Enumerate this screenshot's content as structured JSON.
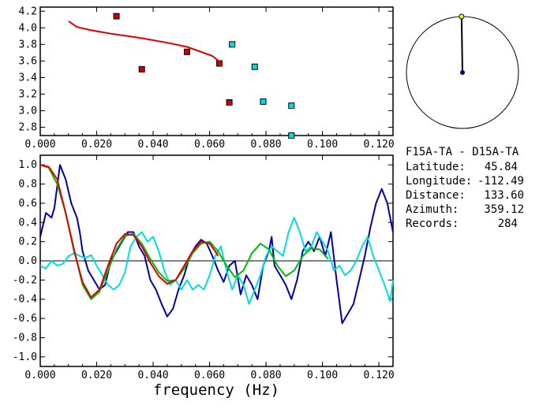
{
  "station": {
    "title": "F15A-TA - D15A-TA",
    "latitude_label": "Latitude:",
    "latitude": "45.84",
    "longitude_label": "Longitude:",
    "longitude": "-112.49",
    "distance_label": "Distance:",
    "distance": "133.60",
    "azimuth_label": "Azimuth:",
    "azimuth": "359.12",
    "records_label": "Records:",
    "records": "284"
  },
  "compass": {
    "azimuth_deg": 359.12,
    "marker_color": "#ffff00",
    "center_color": "#00008b"
  },
  "chart_data": [
    {
      "type": "scatter",
      "xlabel": "",
      "ylabel": "",
      "xlim": [
        0.0,
        0.125
      ],
      "ylim": [
        2.7,
        4.25
      ],
      "xticks": [
        "0.000",
        "0.020",
        "0.040",
        "0.060",
        "0.080",
        "0.100",
        "0.120"
      ],
      "yticks": [
        "4.2",
        "4.0",
        "3.8",
        "3.6",
        "3.4",
        "3.2",
        "3.0",
        "2.8"
      ],
      "series": [
        {
          "color": "#cc0000",
          "marker": "square",
          "points": [
            [
              0.027,
              4.14
            ],
            [
              0.036,
              3.5
            ],
            [
              0.052,
              3.71
            ],
            [
              0.0635,
              3.57
            ],
            [
              0.067,
              3.1
            ]
          ]
        },
        {
          "color": "#00dddd",
          "marker": "square",
          "points": [
            [
              0.068,
              3.8
            ],
            [
              0.076,
              3.53
            ],
            [
              0.079,
              3.11
            ],
            [
              0.089,
              3.06
            ],
            [
              0.089,
              2.7
            ]
          ]
        },
        {
          "type": "line",
          "color": "#dd0000",
          "points": [
            [
              0.01,
              4.08
            ],
            [
              0.013,
              4.01
            ],
            [
              0.018,
              3.97
            ],
            [
              0.025,
              3.93
            ],
            [
              0.035,
              3.88
            ],
            [
              0.045,
              3.82
            ],
            [
              0.052,
              3.77
            ],
            [
              0.057,
              3.71
            ],
            [
              0.061,
              3.66
            ],
            [
              0.064,
              3.58
            ]
          ]
        }
      ]
    },
    {
      "type": "line",
      "xlabel": "frequency (Hz)",
      "ylabel": "",
      "xlim": [
        0.0,
        0.125
      ],
      "ylim": [
        -1.1,
        1.1
      ],
      "xticks": [
        "0.000",
        "0.020",
        "0.040",
        "0.060",
        "0.080",
        "0.100",
        "0.120"
      ],
      "yticks": [
        "1.0",
        "0.8",
        "0.6",
        "0.4",
        "0.2",
        "0.0",
        "-0.2",
        "-0.4",
        "-0.6",
        "-0.8",
        "-1.0"
      ],
      "series": [
        {
          "color": "#0000aa",
          "points": [
            [
              0,
              0.25
            ],
            [
              0.002,
              0.5
            ],
            [
              0.004,
              0.45
            ],
            [
              0.005,
              0.55
            ],
            [
              0.007,
              1.0
            ],
            [
              0.009,
              0.85
            ],
            [
              0.011,
              0.6
            ],
            [
              0.013,
              0.45
            ],
            [
              0.014,
              0.3
            ],
            [
              0.015,
              0.1
            ],
            [
              0.017,
              -0.1
            ],
            [
              0.019,
              -0.2
            ],
            [
              0.021,
              -0.3
            ],
            [
              0.023,
              -0.25
            ],
            [
              0.025,
              0.0
            ],
            [
              0.027,
              0.1
            ],
            [
              0.029,
              0.2
            ],
            [
              0.031,
              0.3
            ],
            [
              0.033,
              0.3
            ],
            [
              0.035,
              0.15
            ],
            [
              0.037,
              0.05
            ],
            [
              0.039,
              -0.2
            ],
            [
              0.041,
              -0.3
            ],
            [
              0.043,
              -0.45
            ],
            [
              0.045,
              -0.58
            ],
            [
              0.047,
              -0.5
            ],
            [
              0.049,
              -0.3
            ],
            [
              0.051,
              -0.15
            ],
            [
              0.053,
              0.05
            ],
            [
              0.055,
              0.15
            ],
            [
              0.057,
              0.22
            ],
            [
              0.059,
              0.18
            ],
            [
              0.061,
              0.05
            ],
            [
              0.063,
              -0.1
            ],
            [
              0.065,
              -0.22
            ],
            [
              0.067,
              -0.05
            ],
            [
              0.069,
              0.0
            ],
            [
              0.071,
              -0.35
            ],
            [
              0.073,
              -0.15
            ],
            [
              0.075,
              -0.25
            ],
            [
              0.077,
              -0.4
            ],
            [
              0.079,
              -0.05
            ],
            [
              0.081,
              0.1
            ],
            [
              0.082,
              0.25
            ],
            [
              0.083,
              -0.05
            ],
            [
              0.085,
              -0.15
            ],
            [
              0.087,
              -0.25
            ],
            [
              0.089,
              -0.4
            ],
            [
              0.091,
              -0.2
            ],
            [
              0.093,
              0.1
            ],
            [
              0.095,
              0.2
            ],
            [
              0.097,
              0.1
            ],
            [
              0.099,
              0.25
            ],
            [
              0.101,
              0.05
            ],
            [
              0.103,
              0.3
            ],
            [
              0.105,
              -0.2
            ],
            [
              0.107,
              -0.65
            ],
            [
              0.109,
              -0.55
            ],
            [
              0.111,
              -0.45
            ],
            [
              0.113,
              -0.2
            ],
            [
              0.115,
              0.05
            ],
            [
              0.117,
              0.35
            ],
            [
              0.119,
              0.6
            ],
            [
              0.121,
              0.75
            ],
            [
              0.123,
              0.6
            ],
            [
              0.125,
              0.3
            ]
          ]
        },
        {
          "color": "#00dddd",
          "points": [
            [
              0,
              -0.05
            ],
            [
              0.002,
              -0.08
            ],
            [
              0.004,
              0.0
            ],
            [
              0.006,
              -0.05
            ],
            [
              0.008,
              -0.03
            ],
            [
              0.01,
              0.05
            ],
            [
              0.012,
              0.08
            ],
            [
              0.014,
              0.05
            ],
            [
              0.016,
              0.03
            ],
            [
              0.018,
              0.06
            ],
            [
              0.02,
              -0.05
            ],
            [
              0.022,
              -0.15
            ],
            [
              0.024,
              -0.25
            ],
            [
              0.026,
              -0.3
            ],
            [
              0.028,
              -0.25
            ],
            [
              0.03,
              -0.12
            ],
            [
              0.032,
              0.15
            ],
            [
              0.034,
              0.25
            ],
            [
              0.036,
              0.3
            ],
            [
              0.038,
              0.2
            ],
            [
              0.04,
              0.25
            ],
            [
              0.042,
              0.1
            ],
            [
              0.044,
              -0.1
            ],
            [
              0.046,
              -0.25
            ],
            [
              0.048,
              -0.2
            ],
            [
              0.05,
              -0.3
            ],
            [
              0.052,
              -0.2
            ],
            [
              0.054,
              -0.3
            ],
            [
              0.056,
              -0.25
            ],
            [
              0.058,
              -0.3
            ],
            [
              0.06,
              -0.15
            ],
            [
              0.062,
              0.05
            ],
            [
              0.064,
              0.15
            ],
            [
              0.066,
              -0.1
            ],
            [
              0.068,
              -0.3
            ],
            [
              0.07,
              -0.15
            ],
            [
              0.072,
              -0.25
            ],
            [
              0.074,
              -0.45
            ],
            [
              0.076,
              -0.3
            ],
            [
              0.078,
              -0.15
            ],
            [
              0.08,
              0.05
            ],
            [
              0.082,
              0.15
            ],
            [
              0.084,
              0.1
            ],
            [
              0.086,
              0.05
            ],
            [
              0.088,
              0.3
            ],
            [
              0.09,
              0.45
            ],
            [
              0.092,
              0.3
            ],
            [
              0.094,
              0.1
            ],
            [
              0.096,
              0.15
            ],
            [
              0.098,
              0.3
            ],
            [
              0.1,
              0.2
            ],
            [
              0.102,
              0.1
            ],
            [
              0.104,
              -0.1
            ],
            [
              0.106,
              -0.05
            ],
            [
              0.108,
              -0.15
            ],
            [
              0.11,
              -0.1
            ],
            [
              0.112,
              0.0
            ],
            [
              0.114,
              0.15
            ],
            [
              0.116,
              0.25
            ],
            [
              0.118,
              0.05
            ],
            [
              0.12,
              -0.1
            ],
            [
              0.122,
              -0.25
            ],
            [
              0.124,
              -0.42
            ],
            [
              0.125,
              -0.2
            ]
          ]
        },
        {
          "color": "#00bb00",
          "points": [
            [
              0,
              1.0
            ],
            [
              0.003,
              0.97
            ],
            [
              0.006,
              0.8
            ],
            [
              0.009,
              0.5
            ],
            [
              0.012,
              0.12
            ],
            [
              0.015,
              -0.25
            ],
            [
              0.018,
              -0.4
            ],
            [
              0.021,
              -0.32
            ],
            [
              0.024,
              -0.1
            ],
            [
              0.027,
              0.12
            ],
            [
              0.03,
              0.26
            ],
            [
              0.033,
              0.28
            ],
            [
              0.036,
              0.18
            ],
            [
              0.039,
              0.02
            ],
            [
              0.042,
              -0.12
            ],
            [
              0.045,
              -0.21
            ],
            [
              0.048,
              -0.2
            ],
            [
              0.051,
              -0.08
            ],
            [
              0.054,
              0.08
            ],
            [
              0.057,
              0.18
            ],
            [
              0.06,
              0.2
            ],
            [
              0.063,
              0.1
            ],
            [
              0.066,
              -0.05
            ],
            [
              0.069,
              -0.17
            ],
            [
              0.072,
              -0.1
            ],
            [
              0.075,
              0.08
            ],
            [
              0.078,
              0.18
            ],
            [
              0.081,
              0.12
            ],
            [
              0.084,
              -0.05
            ],
            [
              0.087,
              -0.16
            ],
            [
              0.09,
              -0.1
            ],
            [
              0.093,
              0.05
            ],
            [
              0.096,
              0.13
            ],
            [
              0.099,
              0.12
            ],
            [
              0.102,
              0.02
            ]
          ]
        },
        {
          "color": "#dd0000",
          "points": [
            [
              0,
              1.0
            ],
            [
              0.003,
              0.98
            ],
            [
              0.006,
              0.85
            ],
            [
              0.009,
              0.5
            ],
            [
              0.012,
              0.1
            ],
            [
              0.015,
              -0.22
            ],
            [
              0.018,
              -0.38
            ],
            [
              0.021,
              -0.3
            ],
            [
              0.024,
              -0.05
            ],
            [
              0.027,
              0.18
            ],
            [
              0.03,
              0.28
            ],
            [
              0.033,
              0.27
            ],
            [
              0.036,
              0.15
            ],
            [
              0.039,
              -0.02
            ],
            [
              0.042,
              -0.16
            ],
            [
              0.045,
              -0.24
            ],
            [
              0.048,
              -0.2
            ],
            [
              0.051,
              -0.05
            ],
            [
              0.054,
              0.1
            ],
            [
              0.057,
              0.2
            ],
            [
              0.06,
              0.18
            ],
            [
              0.062,
              0.1
            ],
            [
              0.063,
              0.05
            ]
          ]
        }
      ]
    }
  ]
}
